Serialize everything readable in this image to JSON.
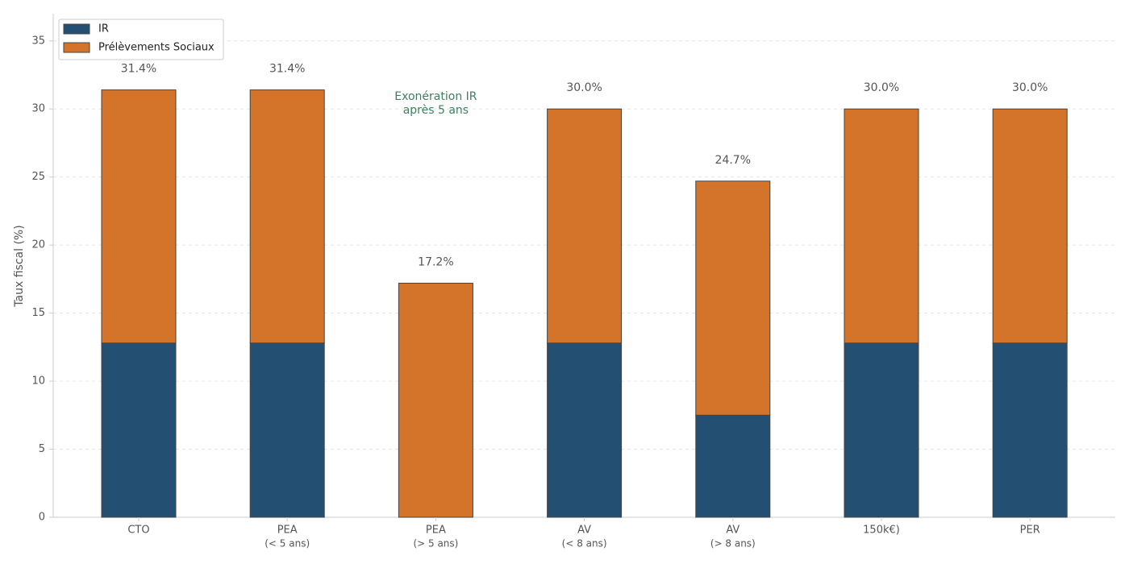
{
  "chart_data": {
    "type": "stacked_bar",
    "y_label": "Taux fiscal (%)",
    "categories": [
      [
        "CTO"
      ],
      [
        "PEA",
        "(< 5 ans)"
      ],
      [
        "PEA",
        "(> 5 ans)"
      ],
      [
        "AV",
        "(< 8 ans)"
      ],
      [
        "AV",
        "(> 8 ans)"
      ],
      [
        "150k€)"
      ],
      [
        "PER"
      ]
    ],
    "series": [
      {
        "name": "IR",
        "color": "#235072",
        "values": [
          12.8,
          12.8,
          0,
          12.8,
          7.5,
          12.8,
          12.8
        ]
      },
      {
        "name": "Prélèvements Sociaux",
        "color": "#d4742a",
        "values": [
          18.6,
          18.6,
          17.2,
          17.2,
          17.2,
          17.2,
          17.2
        ]
      }
    ],
    "totals": [
      31.4,
      31.4,
      17.2,
      30.0,
      24.7,
      30.0,
      30.0
    ],
    "value_labels": [
      "31.4%",
      "31.4%",
      "17.2%",
      "30.0%",
      "24.7%",
      "30.0%",
      "30.0%"
    ],
    "annotation": {
      "lines": [
        "Exonération IR",
        "après 5 ans"
      ],
      "category_index": 2,
      "y": 30.9,
      "color": "#3f8060"
    },
    "ylim": [
      0,
      37
    ],
    "yticks": [
      0,
      5,
      10,
      15,
      20,
      25,
      30,
      35
    ],
    "grid": true,
    "legend": "upper left"
  }
}
